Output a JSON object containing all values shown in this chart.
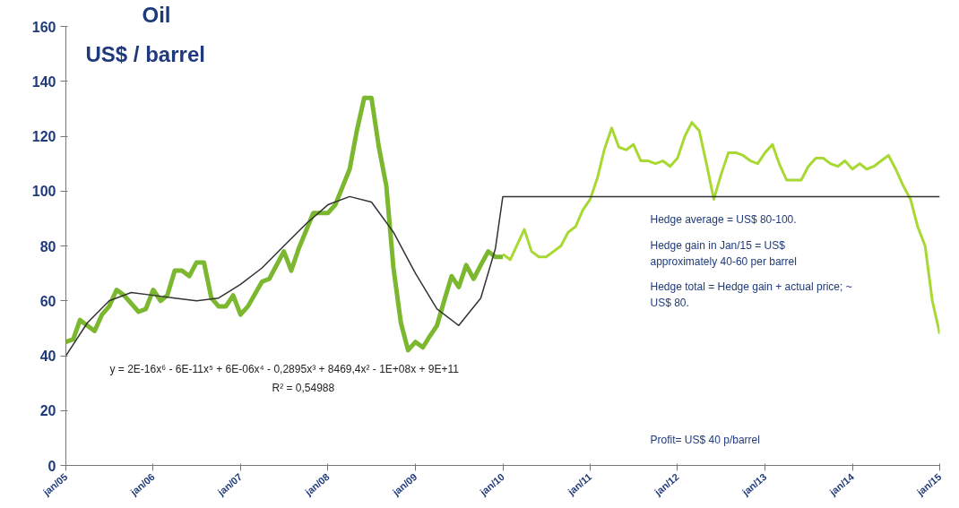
{
  "chart_data": {
    "type": "line",
    "title": "Oil",
    "ylabel": "US$ / barrel",
    "xlim": [
      "2005-01",
      "2015-01"
    ],
    "ylim": [
      0,
      160
    ],
    "yticks": [
      0,
      20,
      40,
      60,
      80,
      100,
      120,
      140,
      160
    ],
    "xticks": [
      {
        "value": "2005-01",
        "label": "jan/05"
      },
      {
        "value": "2006-01",
        "label": "jan/06"
      },
      {
        "value": "2007-01",
        "label": "jan/07"
      },
      {
        "value": "2008-01",
        "label": "jan/08"
      },
      {
        "value": "2009-01",
        "label": "jan/09"
      },
      {
        "value": "2010-01",
        "label": "jan/10"
      },
      {
        "value": "2011-01",
        "label": "jan/11"
      },
      {
        "value": "2012-01",
        "label": "jan/12"
      },
      {
        "value": "2013-01",
        "label": "jan/13"
      },
      {
        "value": "2014-01",
        "label": "jan/14"
      },
      {
        "value": "2015-01",
        "label": "jan/15"
      }
    ],
    "grid": false,
    "marker": "none",
    "line_style": "solid",
    "series": [
      {
        "color": "#7cb82f",
        "x": [
          "2005-01",
          "2005-02",
          "2005-03",
          "2005-05",
          "2005-06",
          "2005-07",
          "2005-08",
          "2005-09",
          "2005-11",
          "2005-12",
          "2006-01",
          "2006-02",
          "2006-03",
          "2006-04",
          "2006-05",
          "2006-06",
          "2006-07",
          "2006-08",
          "2006-09",
          "2006-10",
          "2006-11",
          "2006-12",
          "2007-01",
          "2007-02",
          "2007-04",
          "2007-05",
          "2007-07",
          "2007-08",
          "2007-09",
          "2007-11",
          "2007-12",
          "2008-01",
          "2008-02",
          "2008-04",
          "2008-05",
          "2008-06",
          "2008-07",
          "2008-08",
          "2008-09",
          "2008-10",
          "2008-11",
          "2008-12",
          "2009-01",
          "2009-02",
          "2009-03",
          "2009-04",
          "2009-05",
          "2009-06",
          "2009-07",
          "2009-08",
          "2009-09",
          "2009-10",
          "2009-11",
          "2009-12",
          "2010-01"
        ],
        "values": [
          45,
          46,
          53,
          49,
          55,
          58,
          64,
          62,
          56,
          57,
          64,
          60,
          62,
          71,
          71,
          69,
          74,
          74,
          61,
          58,
          58,
          62,
          55,
          58,
          67,
          68,
          78,
          71,
          79,
          92,
          92,
          92,
          95,
          108,
          122,
          134,
          134,
          116,
          102,
          72,
          52,
          42,
          45,
          43,
          47,
          51,
          60,
          69,
          65,
          73,
          68,
          73,
          78,
          76,
          76
        ]
      },
      {
        "color": "#a8d832",
        "x": [
          "2010-01",
          "2010-02",
          "2010-04",
          "2010-05",
          "2010-06",
          "2010-07",
          "2010-08",
          "2010-09",
          "2010-10",
          "2010-11",
          "2010-12",
          "2011-01",
          "2011-02",
          "2011-03",
          "2011-04",
          "2011-05",
          "2011-06",
          "2011-07",
          "2011-08",
          "2011-09",
          "2011-10",
          "2011-11",
          "2011-12",
          "2012-01",
          "2012-02",
          "2012-03",
          "2012-04",
          "2012-05",
          "2012-06",
          "2012-07",
          "2012-08",
          "2012-09",
          "2012-10",
          "2012-11",
          "2012-12",
          "2013-01",
          "2013-02",
          "2013-03",
          "2013-04",
          "2013-05",
          "2013-06",
          "2013-07",
          "2013-08",
          "2013-09",
          "2013-10",
          "2013-11",
          "2013-12",
          "2014-01",
          "2014-02",
          "2014-03",
          "2014-04",
          "2014-05",
          "2014-06",
          "2014-07",
          "2014-08",
          "2014-09",
          "2014-10",
          "2014-11",
          "2014-12",
          "2015-01"
        ],
        "values": [
          77,
          75,
          86,
          78,
          76,
          76,
          78,
          80,
          85,
          87,
          93,
          97,
          105,
          115,
          123,
          116,
          115,
          117,
          111,
          111,
          110,
          111,
          109,
          112,
          120,
          125,
          122,
          110,
          97,
          106,
          114,
          114,
          113,
          111,
          110,
          114,
          117,
          110,
          104,
          104,
          104,
          109,
          112,
          112,
          110,
          109,
          111,
          108,
          110,
          108,
          109,
          111,
          113,
          108,
          102,
          97,
          87,
          80,
          60,
          48
        ]
      },
      {
        "color": "#333333",
        "x": [
          "2005-01",
          "2005-04",
          "2005-07",
          "2005-10",
          "2006-01",
          "2006-04",
          "2006-07",
          "2006-10",
          "2007-01",
          "2007-04",
          "2007-07",
          "2007-10",
          "2008-01",
          "2008-04",
          "2008-07",
          "2008-10",
          "2009-01",
          "2009-04",
          "2009-07",
          "2009-10",
          "2009-12",
          "2010-01",
          "2015-01"
        ],
        "values": [
          40,
          52,
          60,
          63,
          62,
          61,
          60,
          61,
          66,
          72,
          80,
          88,
          95,
          98,
          96,
          85,
          70,
          57,
          51,
          61,
          79,
          98,
          98
        ]
      }
    ],
    "annotations": [
      "y = 2E-16x⁶ - 6E-11x⁵ + 6E-06x⁴ - 0,2895x³ + 8469,4x² - 1E+08x + 9E+11",
      "R² = 0,54988",
      "Hedge average = US$ 80-100.",
      "Hedge gain in Jan/15 = US$\napproximately 40-60 per barrel",
      "Hedge total = Hedge gain + actual price; ~\nUS$ 80.",
      "Profit= US$ 40 p/barrel"
    ]
  }
}
